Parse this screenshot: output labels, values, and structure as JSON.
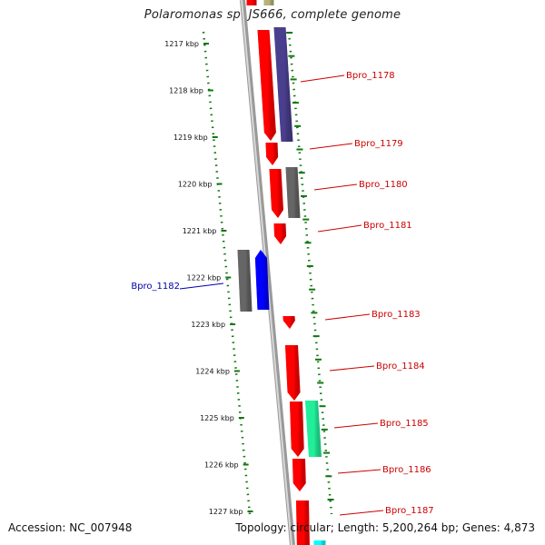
{
  "title": "Polaromonas sp. JS666, complete genome",
  "accession": "Accession: NC_007948",
  "summary": "Topology: circular; Length: 5,200,264 bp; Genes: 4,873",
  "ticks": [
    "1217 kbp",
    "1218 kbp",
    "1219 kbp",
    "1220 kbp",
    "1221 kbp",
    "1222 kbp",
    "1223 kbp",
    "1224 kbp",
    "1225 kbp",
    "1226 kbp",
    "1227 kbp"
  ],
  "gene_labels": [
    {
      "text": "Bpro_1178",
      "color": "#cc0000"
    },
    {
      "text": "Bpro_1179",
      "color": "#cc0000"
    },
    {
      "text": "Bpro_1180",
      "color": "#cc0000"
    },
    {
      "text": "Bpro_1181",
      "color": "#cc0000"
    },
    {
      "text": "Bpro_1182",
      "color": "#0000aa"
    },
    {
      "text": "Bpro_1183",
      "color": "#cc0000"
    },
    {
      "text": "Bpro_1184",
      "color": "#cc0000"
    },
    {
      "text": "Bpro_1185",
      "color": "#cc0000"
    },
    {
      "text": "Bpro_1186",
      "color": "#cc0000"
    },
    {
      "text": "Bpro_1187",
      "color": "#cc0000"
    }
  ],
  "colors": {
    "cds_red": "#ff0000",
    "cds_purple": "#4a3f8f",
    "cds_gray": "#666666",
    "cds_blue": "#0000ff",
    "cds_green": "#22ee99",
    "cds_cyan": "#00ffff",
    "cds_olive": "#b6b27a",
    "backbone": "#888888",
    "tick_green": "#117711"
  }
}
